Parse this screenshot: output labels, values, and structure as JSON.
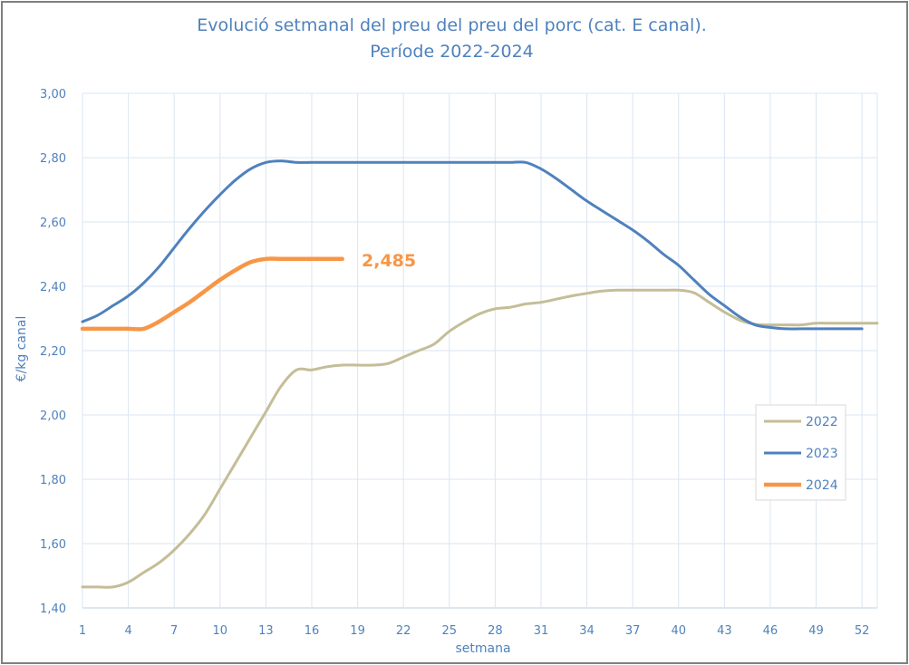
{
  "chart_data": {
    "type": "line",
    "title": "Evolució setmanal del preu del preu del porc (cat. E canal).",
    "subtitle": "Període 2022-2024",
    "xlabel": "setmana",
    "ylabel": "€/kg canal",
    "ylim": [
      1.4,
      3.0
    ],
    "xlim": [
      1,
      53
    ],
    "yticks": [
      "1,40",
      "1,60",
      "1,80",
      "2,00",
      "2,20",
      "2,40",
      "2,60",
      "2,80",
      "3,00"
    ],
    "xticks": [
      "1",
      "4",
      "7",
      "10",
      "13",
      "16",
      "19",
      "22",
      "25",
      "28",
      "31",
      "34",
      "37",
      "40",
      "43",
      "46",
      "49",
      "52"
    ],
    "grid": true,
    "legend_position": "right",
    "annotation": "2,485",
    "series": [
      {
        "name": "2022",
        "color": "#c4bd97",
        "x": [
          1,
          2,
          3,
          4,
          5,
          6,
          7,
          8,
          9,
          10,
          11,
          12,
          13,
          14,
          15,
          16,
          17,
          18,
          19,
          20,
          21,
          22,
          23,
          24,
          25,
          26,
          27,
          28,
          29,
          30,
          31,
          32,
          33,
          34,
          35,
          36,
          37,
          38,
          39,
          40,
          41,
          42,
          43,
          44,
          45,
          46,
          47,
          48,
          49,
          50,
          51,
          52,
          53
        ],
        "values": [
          1.465,
          1.465,
          1.465,
          1.48,
          1.51,
          1.54,
          1.58,
          1.63,
          1.69,
          1.77,
          1.85,
          1.93,
          2.01,
          2.09,
          2.14,
          2.14,
          2.15,
          2.155,
          2.155,
          2.155,
          2.16,
          2.18,
          2.2,
          2.22,
          2.26,
          2.29,
          2.315,
          2.33,
          2.335,
          2.345,
          2.35,
          2.36,
          2.37,
          2.378,
          2.385,
          2.388,
          2.388,
          2.388,
          2.388,
          2.388,
          2.38,
          2.35,
          2.32,
          2.295,
          2.282,
          2.28,
          2.28,
          2.28,
          2.285,
          2.285,
          2.285,
          2.285,
          2.285
        ]
      },
      {
        "name": "2023",
        "color": "#4f81bd",
        "x": [
          1,
          2,
          3,
          4,
          5,
          6,
          7,
          8,
          9,
          10,
          11,
          12,
          13,
          14,
          15,
          16,
          17,
          18,
          19,
          20,
          21,
          22,
          23,
          24,
          25,
          26,
          27,
          28,
          29,
          30,
          31,
          32,
          33,
          34,
          35,
          36,
          37,
          38,
          39,
          40,
          41,
          42,
          43,
          44,
          45,
          46,
          47,
          48,
          49,
          50,
          51,
          52
        ],
        "values": [
          2.29,
          2.31,
          2.34,
          2.37,
          2.41,
          2.46,
          2.52,
          2.58,
          2.635,
          2.685,
          2.73,
          2.765,
          2.785,
          2.79,
          2.785,
          2.785,
          2.785,
          2.785,
          2.785,
          2.785,
          2.785,
          2.785,
          2.785,
          2.785,
          2.785,
          2.785,
          2.785,
          2.785,
          2.785,
          2.785,
          2.765,
          2.735,
          2.7,
          2.665,
          2.635,
          2.605,
          2.575,
          2.54,
          2.5,
          2.465,
          2.42,
          2.375,
          2.34,
          2.305,
          2.28,
          2.272,
          2.268,
          2.268,
          2.268,
          2.268,
          2.268,
          2.268
        ]
      },
      {
        "name": "2024",
        "color": "#f79646",
        "x": [
          1,
          2,
          3,
          4,
          5,
          6,
          7,
          8,
          9,
          10,
          11,
          12,
          13,
          14,
          15,
          16,
          17,
          18
        ],
        "values": [
          2.268,
          2.268,
          2.268,
          2.268,
          2.268,
          2.29,
          2.32,
          2.35,
          2.385,
          2.42,
          2.45,
          2.475,
          2.485,
          2.485,
          2.485,
          2.485,
          2.485,
          2.485
        ]
      }
    ]
  }
}
